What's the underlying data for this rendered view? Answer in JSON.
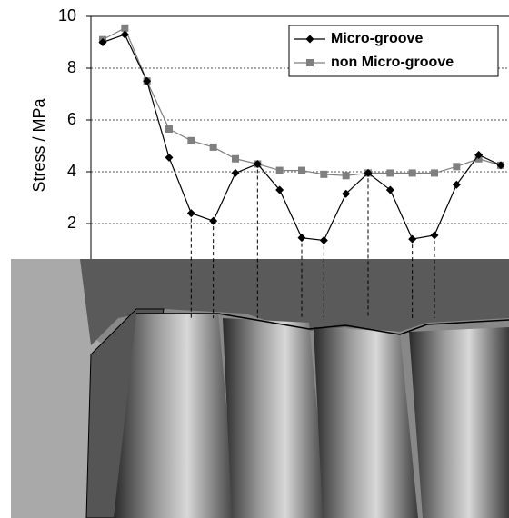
{
  "chart_data": {
    "type": "line",
    "y_label": "Stress / MPa",
    "categories": [
      null,
      null,
      null,
      null,
      null,
      null,
      null,
      null,
      null,
      null,
      null,
      null,
      null,
      null,
      null,
      null,
      null,
      null,
      null
    ],
    "series": [
      {
        "name": "Micro-groove",
        "color": "#000000",
        "marker": "diamond",
        "values": [
          9.0,
          9.3,
          7.5,
          4.55,
          2.4,
          2.1,
          3.95,
          4.3,
          3.3,
          1.45,
          1.35,
          3.15,
          3.95,
          3.3,
          1.4,
          1.55,
          3.5,
          4.65,
          4.25
        ]
      },
      {
        "name": "non Micro-groove",
        "color": "#7f7f7f",
        "marker": "square",
        "values": [
          9.1,
          9.55,
          7.5,
          5.65,
          5.2,
          4.95,
          4.5,
          4.3,
          4.05,
          4.05,
          3.9,
          3.85,
          3.95,
          3.95,
          3.95,
          3.95,
          4.2,
          4.5,
          4.25
        ]
      }
    ],
    "ylim": [
      0,
      10
    ],
    "yticks": [
      2,
      4,
      6,
      8,
      10
    ],
    "grid": true,
    "legend": "top-right"
  }
}
